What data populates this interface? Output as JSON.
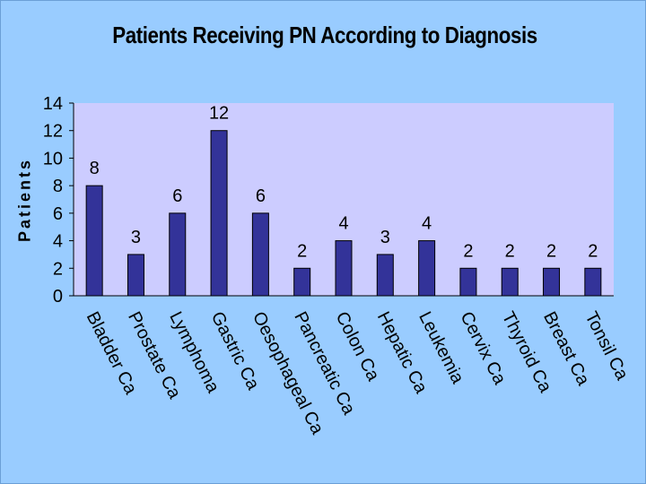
{
  "chart_data": {
    "type": "bar",
    "title": "Patients Receiving PN According to Diagnosis",
    "xlabel": "",
    "ylabel": "Patients",
    "categories": [
      "Bladder Ca",
      "Prostate Ca",
      "Lymphoma",
      "Gastric Ca",
      "Oesophageal Ca",
      "Pancreatic Ca",
      "Colon Ca",
      "Hepatic Ca",
      "Leukemia",
      "Cervix Ca",
      "Thyroid Ca",
      "Breast Ca",
      "Tonsil Ca"
    ],
    "values": [
      8,
      3,
      6,
      12,
      6,
      2,
      4,
      3,
      4,
      2,
      2,
      2,
      2
    ],
    "ylim": [
      0,
      14
    ],
    "yticks": [
      0,
      2,
      4,
      6,
      8,
      10,
      12,
      14
    ],
    "data_labels": true,
    "grid": false,
    "colors": {
      "background": "#99ccff",
      "plot_area": "#ccccff",
      "bar_fill": "#333399",
      "bar_stroke": "#000000"
    }
  }
}
